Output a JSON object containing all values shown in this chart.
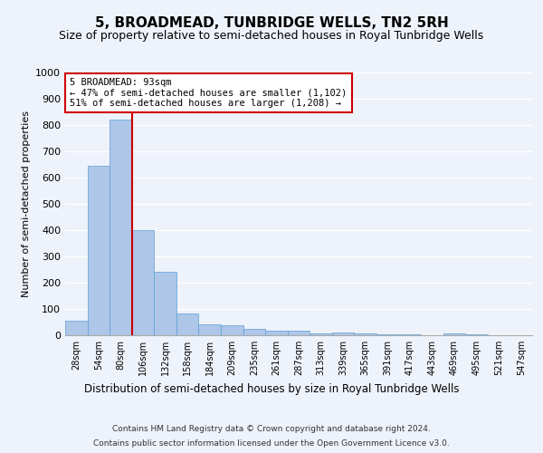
{
  "title": "5, BROADMEAD, TUNBRIDGE WELLS, TN2 5RH",
  "subtitle": "Size of property relative to semi-detached houses in Royal Tunbridge Wells",
  "xlabel_bottom": "Distribution of semi-detached houses by size in Royal Tunbridge Wells",
  "ylabel": "Number of semi-detached properties",
  "footer1": "Contains HM Land Registry data © Crown copyright and database right 2024.",
  "footer2": "Contains public sector information licensed under the Open Government Licence v3.0.",
  "categories": [
    "28sqm",
    "54sqm",
    "80sqm",
    "106sqm",
    "132sqm",
    "158sqm",
    "184sqm",
    "209sqm",
    "235sqm",
    "261sqm",
    "287sqm",
    "313sqm",
    "339sqm",
    "365sqm",
    "391sqm",
    "417sqm",
    "443sqm",
    "469sqm",
    "495sqm",
    "521sqm",
    "547sqm"
  ],
  "values": [
    55,
    645,
    820,
    400,
    240,
    83,
    40,
    38,
    25,
    17,
    17,
    8,
    10,
    8,
    5,
    5,
    0,
    8,
    2,
    0,
    0
  ],
  "bar_color": "#aec6e8",
  "bar_edge_color": "#5a9fd4",
  "annotation_title": "5 BROADMEAD: 93sqm",
  "annotation_line1": "← 47% of semi-detached houses are smaller (1,102)",
  "annotation_line2": "51% of semi-detached houses are larger (1,208) →",
  "annotation_box_color": "#ffffff",
  "annotation_box_edge": "#cc0000",
  "red_line_color": "#cc0000",
  "ylim": [
    0,
    1000
  ],
  "yticks": [
    0,
    100,
    200,
    300,
    400,
    500,
    600,
    700,
    800,
    900,
    1000
  ],
  "background_color": "#eef2fa",
  "grid_color": "#ffffff",
  "title_fontsize": 11,
  "subtitle_fontsize": 9
}
